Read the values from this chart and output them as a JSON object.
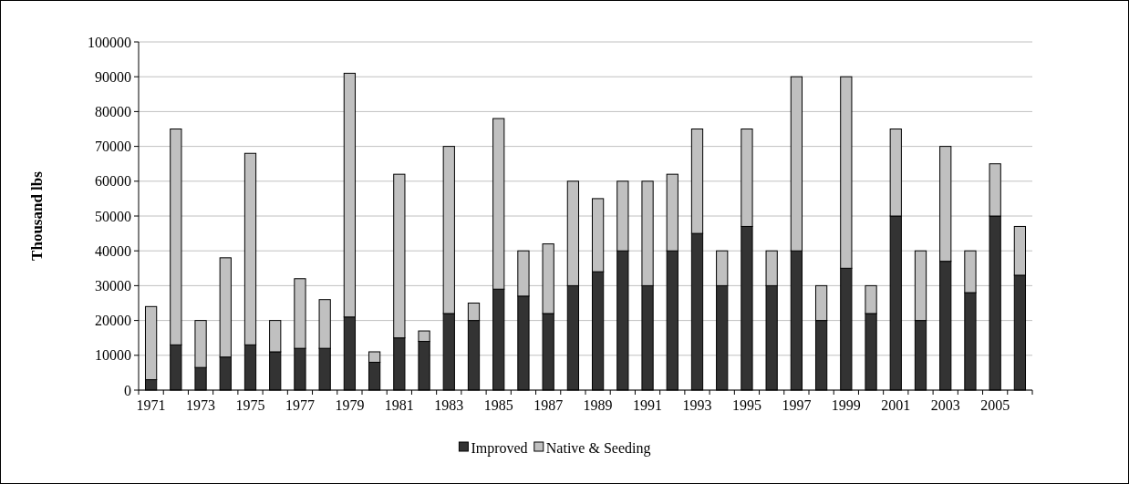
{
  "chart_data": {
    "type": "bar",
    "stacked": true,
    "ylabel": "Thousand lbs",
    "categories": [
      "1971",
      null,
      "1973",
      null,
      "1975",
      null,
      "1977",
      null,
      "1979",
      null,
      "1981",
      null,
      "1983",
      null,
      "1985",
      null,
      "1987",
      null,
      "1989",
      null,
      "1991",
      null,
      "1993",
      null,
      "1995",
      null,
      "1997",
      null,
      "1999",
      null,
      "2001",
      null,
      "2003",
      null,
      "2005",
      null
    ],
    "series": [
      {
        "name": "Improved",
        "color": "#333333",
        "values": [
          3000,
          13000,
          6500,
          9500,
          13000,
          11000,
          12000,
          12000,
          21000,
          8000,
          15000,
          14000,
          22000,
          20000,
          29000,
          27000,
          22000,
          30000,
          34000,
          40000,
          30000,
          40000,
          45000,
          30000,
          47000,
          30000,
          40000,
          20000,
          35000,
          22000,
          50000,
          20000,
          37000,
          28000,
          50000,
          33000
        ]
      },
      {
        "name": "Native & Seeding",
        "color": "#c0c0c0",
        "values": [
          21000,
          62000,
          13500,
          28500,
          55000,
          9000,
          20000,
          14000,
          70000,
          3000,
          47000,
          3000,
          48000,
          5000,
          49000,
          13000,
          20000,
          30000,
          21000,
          20000,
          30000,
          22000,
          30000,
          10000,
          28000,
          10000,
          50000,
          10000,
          55000,
          8000,
          25000,
          20000,
          33000,
          12000,
          15000,
          14000
        ]
      }
    ],
    "ylim": [
      0,
      100000
    ],
    "yticks": [
      0,
      10000,
      20000,
      30000,
      40000,
      50000,
      60000,
      70000,
      80000,
      90000,
      100000
    ],
    "grid": "y",
    "legend": "bottom"
  }
}
